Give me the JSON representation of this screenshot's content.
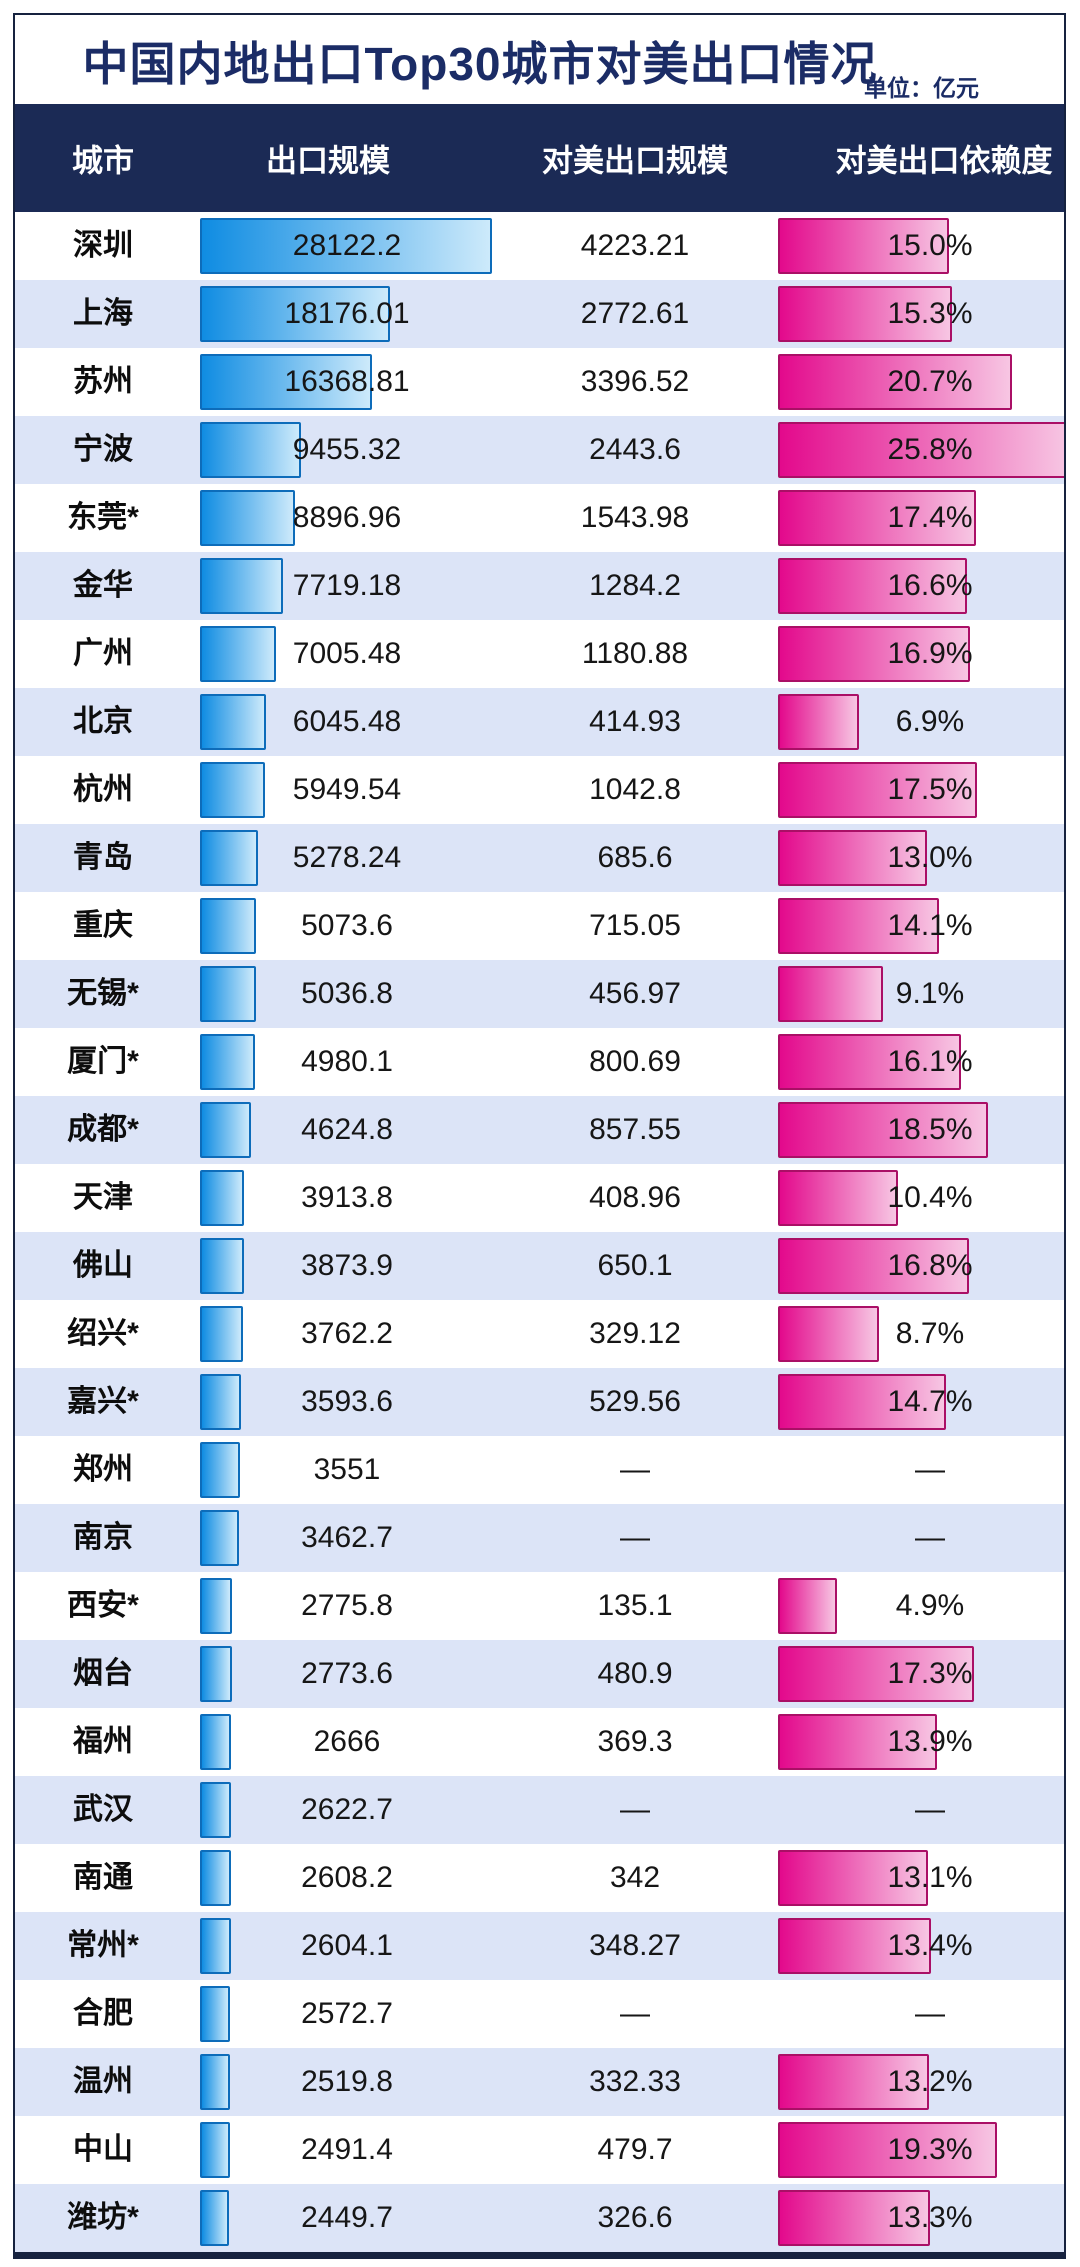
{
  "chart_data": {
    "type": "bar",
    "title": "中国内地出口Top30城市对美出口情况",
    "unit": "单位：亿元",
    "columns": [
      "城市",
      "出口规模",
      "对美出口规模",
      "对美出口依赖度"
    ],
    "missing_placeholder": "—",
    "legend_position": "none",
    "grid": false,
    "export_axis_max": 28122.2,
    "dependency_axis_max_pct": 25.8,
    "rows": [
      {
        "city": "深圳",
        "export_scale": "28122.2",
        "us_export_scale": "4223.21",
        "us_dependency_pct": "15.0%"
      },
      {
        "city": "上海",
        "export_scale": "18176.01",
        "us_export_scale": "2772.61",
        "us_dependency_pct": "15.3%"
      },
      {
        "city": "苏州",
        "export_scale": "16368.81",
        "us_export_scale": "3396.52",
        "us_dependency_pct": "20.7%"
      },
      {
        "city": "宁波",
        "export_scale": "9455.32",
        "us_export_scale": "2443.6",
        "us_dependency_pct": "25.8%"
      },
      {
        "city": "东莞*",
        "export_scale": "8896.96",
        "us_export_scale": "1543.98",
        "us_dependency_pct": "17.4%"
      },
      {
        "city": "金华",
        "export_scale": "7719.18",
        "us_export_scale": "1284.2",
        "us_dependency_pct": "16.6%"
      },
      {
        "city": "广州",
        "export_scale": "7005.48",
        "us_export_scale": "1180.88",
        "us_dependency_pct": "16.9%"
      },
      {
        "city": "北京",
        "export_scale": "6045.48",
        "us_export_scale": "414.93",
        "us_dependency_pct": "6.9%"
      },
      {
        "city": "杭州",
        "export_scale": "5949.54",
        "us_export_scale": "1042.8",
        "us_dependency_pct": "17.5%"
      },
      {
        "city": "青岛",
        "export_scale": "5278.24",
        "us_export_scale": "685.6",
        "us_dependency_pct": "13.0%"
      },
      {
        "city": "重庆",
        "export_scale": "5073.6",
        "us_export_scale": "715.05",
        "us_dependency_pct": "14.1%"
      },
      {
        "city": "无锡*",
        "export_scale": "5036.8",
        "us_export_scale": "456.97",
        "us_dependency_pct": "9.1%"
      },
      {
        "city": "厦门*",
        "export_scale": "4980.1",
        "us_export_scale": "800.69",
        "us_dependency_pct": "16.1%"
      },
      {
        "city": "成都*",
        "export_scale": "4624.8",
        "us_export_scale": "857.55",
        "us_dependency_pct": "18.5%"
      },
      {
        "city": "天津",
        "export_scale": "3913.8",
        "us_export_scale": "408.96",
        "us_dependency_pct": "10.4%"
      },
      {
        "city": "佛山",
        "export_scale": "3873.9",
        "us_export_scale": "650.1",
        "us_dependency_pct": "16.8%"
      },
      {
        "city": "绍兴*",
        "export_scale": "3762.2",
        "us_export_scale": "329.12",
        "us_dependency_pct": "8.7%"
      },
      {
        "city": "嘉兴*",
        "export_scale": "3593.6",
        "us_export_scale": "529.56",
        "us_dependency_pct": "14.7%"
      },
      {
        "city": "郑州",
        "export_scale": "3551",
        "us_export_scale": "—",
        "us_dependency_pct": "—"
      },
      {
        "city": "南京",
        "export_scale": "3462.7",
        "us_export_scale": "—",
        "us_dependency_pct": "—"
      },
      {
        "city": "西安*",
        "export_scale": "2775.8",
        "us_export_scale": "135.1",
        "us_dependency_pct": "4.9%"
      },
      {
        "city": "烟台",
        "export_scale": "2773.6",
        "us_export_scale": "480.9",
        "us_dependency_pct": "17.3%"
      },
      {
        "city": "福州",
        "export_scale": "2666",
        "us_export_scale": "369.3",
        "us_dependency_pct": "13.9%"
      },
      {
        "city": "武汉",
        "export_scale": "2622.7",
        "us_export_scale": "—",
        "us_dependency_pct": "—"
      },
      {
        "city": "南通",
        "export_scale": "2608.2",
        "us_export_scale": "342",
        "us_dependency_pct": "13.1%"
      },
      {
        "city": "常州*",
        "export_scale": "2604.1",
        "us_export_scale": "348.27",
        "us_dependency_pct": "13.4%"
      },
      {
        "city": "合肥",
        "export_scale": "2572.7",
        "us_export_scale": "—",
        "us_dependency_pct": "—"
      },
      {
        "city": "温州",
        "export_scale": "2519.8",
        "us_export_scale": "332.33",
        "us_dependency_pct": "13.2%"
      },
      {
        "city": "中山",
        "export_scale": "2491.4",
        "us_export_scale": "479.7",
        "us_dependency_pct": "19.3%"
      },
      {
        "city": "潍坊*",
        "export_scale": "2449.7",
        "us_export_scale": "326.6",
        "us_dependency_pct": "13.3%"
      }
    ]
  },
  "colors": {
    "frame_border": "#16223f",
    "title_text": "#1b2c66",
    "header_bg": "#1b2a55",
    "header_text": "#ffffff",
    "row_bg": "#ffffff",
    "row_alt_bg": "#dce4f7",
    "blue_bar_start": "#0f8ce2",
    "blue_bar_end": "#cdeafb",
    "blue_bar_border": "#0d6cba",
    "pink_bar_start": "#e3098c",
    "pink_bar_end": "#f7c6e3",
    "pink_bar_border": "#aa0f66",
    "value_text": "#161616"
  }
}
